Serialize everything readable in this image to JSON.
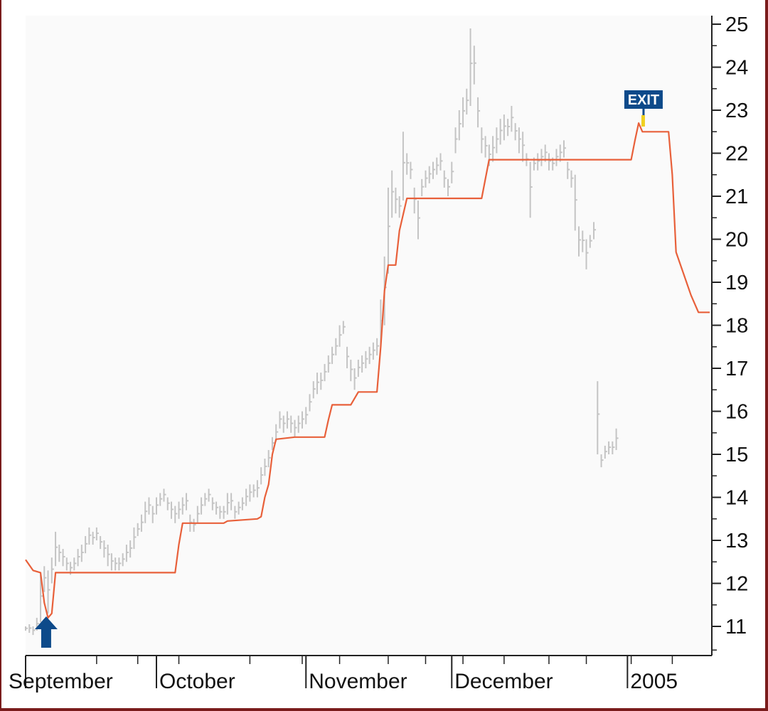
{
  "chart_data": {
    "type": "line",
    "ylim": [
      10.5,
      25.3
    ],
    "y_ticks": [
      "11",
      "12",
      "13",
      "14",
      "15",
      "16",
      "17",
      "18",
      "19",
      "20",
      "21",
      "22",
      "23",
      "24",
      "25"
    ],
    "x_labels": [
      "September",
      "October",
      "November",
      "December",
      "2005"
    ],
    "grid": false,
    "annotations": {
      "exit_label": "EXIT",
      "entry_marker": "up-arrow"
    },
    "colors": {
      "stop_line": "#e8603a",
      "price_bars": "#c4c4c4",
      "marker": "#0d4a8a",
      "plot_bg": "#fafafa"
    },
    "stop_line": [
      [
        0,
        12.55
      ],
      [
        2,
        12.3
      ],
      [
        4,
        12.25
      ],
      [
        5,
        11.55
      ],
      [
        6,
        11.2
      ],
      [
        7,
        11.3
      ],
      [
        8,
        12.25
      ],
      [
        40,
        12.25
      ],
      [
        41,
        12.9
      ],
      [
        42,
        13.4
      ],
      [
        53,
        13.4
      ],
      [
        54,
        13.45
      ],
      [
        62,
        13.5
      ],
      [
        63,
        13.55
      ],
      [
        64,
        14.0
      ],
      [
        65,
        14.3
      ],
      [
        66,
        15.0
      ],
      [
        67,
        15.35
      ],
      [
        72,
        15.4
      ],
      [
        80,
        15.4
      ],
      [
        81,
        15.8
      ],
      [
        82,
        16.15
      ],
      [
        87,
        16.15
      ],
      [
        89,
        16.45
      ],
      [
        94,
        16.45
      ],
      [
        95,
        17.5
      ],
      [
        96,
        18.8
      ],
      [
        97,
        19.4
      ],
      [
        99,
        19.4
      ],
      [
        100,
        20.2
      ],
      [
        102,
        20.95
      ],
      [
        122,
        20.95
      ],
      [
        124,
        21.85
      ],
      [
        162,
        21.85
      ],
      [
        163,
        22.3
      ],
      [
        164,
        22.7
      ],
      [
        165,
        22.5
      ],
      [
        172,
        22.5
      ],
      [
        173,
        21.5
      ],
      [
        174,
        19.7
      ],
      [
        176,
        19.2
      ],
      [
        178,
        18.7
      ],
      [
        180,
        18.3
      ],
      [
        183,
        18.3
      ]
    ],
    "price_bars": [
      [
        0,
        10.9,
        11.0
      ],
      [
        1,
        10.85,
        11.05
      ],
      [
        2,
        10.8,
        11.0
      ],
      [
        3,
        10.9,
        11.2
      ],
      [
        4,
        11.1,
        12.2
      ],
      [
        5,
        11.8,
        12.4
      ],
      [
        6,
        11.3,
        12.3
      ],
      [
        7,
        12.0,
        12.6
      ],
      [
        8,
        12.4,
        13.2
      ],
      [
        9,
        12.5,
        12.9
      ],
      [
        10,
        12.4,
        12.8
      ],
      [
        11,
        12.3,
        12.6
      ],
      [
        12,
        12.2,
        12.5
      ],
      [
        13,
        12.3,
        12.6
      ],
      [
        14,
        12.4,
        12.8
      ],
      [
        15,
        12.5,
        12.9
      ],
      [
        16,
        12.7,
        13.1
      ],
      [
        17,
        12.9,
        13.3
      ],
      [
        18,
        12.9,
        13.2
      ],
      [
        19,
        13.0,
        13.3
      ],
      [
        20,
        12.8,
        13.1
      ],
      [
        21,
        12.6,
        13.0
      ],
      [
        22,
        12.4,
        12.9
      ],
      [
        23,
        12.3,
        12.7
      ],
      [
        24,
        12.3,
        12.6
      ],
      [
        25,
        12.3,
        12.6
      ],
      [
        26,
        12.4,
        12.7
      ],
      [
        27,
        12.5,
        12.9
      ],
      [
        28,
        12.6,
        13.0
      ],
      [
        29,
        12.8,
        13.3
      ],
      [
        30,
        13.1,
        13.4
      ],
      [
        31,
        13.2,
        13.6
      ],
      [
        32,
        13.4,
        13.9
      ],
      [
        33,
        13.6,
        14.0
      ],
      [
        34,
        13.4,
        13.8
      ],
      [
        35,
        13.6,
        14.0
      ],
      [
        36,
        13.8,
        14.1
      ],
      [
        37,
        13.9,
        14.2
      ],
      [
        38,
        13.7,
        14.0
      ],
      [
        39,
        13.5,
        13.9
      ],
      [
        40,
        13.4,
        13.8
      ],
      [
        41,
        13.5,
        13.9
      ],
      [
        42,
        13.6,
        14.0
      ],
      [
        43,
        13.7,
        14.1
      ],
      [
        44,
        13.2,
        13.6
      ],
      [
        45,
        13.2,
        13.5
      ],
      [
        46,
        13.4,
        13.8
      ],
      [
        47,
        13.6,
        14.0
      ],
      [
        48,
        13.8,
        14.1
      ],
      [
        49,
        13.9,
        14.2
      ],
      [
        50,
        13.7,
        14.0
      ],
      [
        51,
        13.6,
        13.9
      ],
      [
        52,
        13.5,
        13.8
      ],
      [
        53,
        13.5,
        13.8
      ],
      [
        54,
        13.6,
        14.1
      ],
      [
        55,
        13.7,
        14.1
      ],
      [
        56,
        13.5,
        13.8
      ],
      [
        57,
        13.6,
        13.9
      ],
      [
        58,
        13.7,
        14.0
      ],
      [
        59,
        13.8,
        14.2
      ],
      [
        60,
        13.9,
        14.3
      ],
      [
        61,
        14.0,
        14.3
      ],
      [
        62,
        14.0,
        14.4
      ],
      [
        63,
        14.3,
        14.7
      ],
      [
        64,
        14.5,
        14.9
      ],
      [
        65,
        14.7,
        15.1
      ],
      [
        66,
        15.1,
        15.4
      ],
      [
        67,
        15.3,
        15.7
      ],
      [
        68,
        15.6,
        16.0
      ],
      [
        69,
        15.5,
        15.9
      ],
      [
        70,
        15.6,
        16.0
      ],
      [
        71,
        15.5,
        15.9
      ],
      [
        72,
        15.4,
        15.8
      ],
      [
        73,
        15.5,
        15.9
      ],
      [
        74,
        15.6,
        16.0
      ],
      [
        75,
        15.7,
        16.1
      ],
      [
        76,
        16.0,
        16.4
      ],
      [
        77,
        16.3,
        16.7
      ],
      [
        78,
        16.4,
        16.9
      ],
      [
        79,
        16.5,
        16.9
      ],
      [
        80,
        16.7,
        17.1
      ],
      [
        81,
        16.9,
        17.3
      ],
      [
        82,
        17.1,
        17.5
      ],
      [
        83,
        17.3,
        17.7
      ],
      [
        84,
        17.5,
        18.0
      ],
      [
        85,
        17.8,
        18.1
      ],
      [
        86,
        17.0,
        17.5
      ],
      [
        87,
        16.7,
        17.2
      ],
      [
        88,
        16.5,
        17.0
      ],
      [
        89,
        16.8,
        17.2
      ],
      [
        90,
        16.9,
        17.3
      ],
      [
        91,
        17.0,
        17.4
      ],
      [
        92,
        17.1,
        17.5
      ],
      [
        93,
        17.2,
        17.6
      ],
      [
        94,
        17.3,
        17.7
      ],
      [
        95,
        17.5,
        18.6
      ],
      [
        96,
        18.0,
        19.6
      ],
      [
        97,
        19.2,
        21.2
      ],
      [
        98,
        20.5,
        21.6
      ],
      [
        99,
        20.6,
        21.2
      ],
      [
        100,
        20.5,
        21.0
      ],
      [
        101,
        20.9,
        22.5
      ],
      [
        102,
        21.5,
        22.0
      ],
      [
        103,
        21.4,
        21.8
      ],
      [
        104,
        20.6,
        21.2
      ],
      [
        105,
        20.0,
        20.9
      ],
      [
        106,
        21.0,
        21.4
      ],
      [
        107,
        21.2,
        21.6
      ],
      [
        108,
        21.3,
        21.7
      ],
      [
        109,
        21.4,
        21.8
      ],
      [
        110,
        21.5,
        21.9
      ],
      [
        111,
        21.6,
        22.0
      ],
      [
        112,
        21.2,
        21.6
      ],
      [
        113,
        21.0,
        21.4
      ],
      [
        114,
        21.3,
        21.8
      ],
      [
        115,
        22.0,
        22.6
      ],
      [
        116,
        22.3,
        23.0
      ],
      [
        117,
        22.6,
        23.3
      ],
      [
        118,
        22.9,
        23.5
      ],
      [
        119,
        23.1,
        24.9
      ],
      [
        120,
        23.6,
        24.5
      ],
      [
        121,
        22.6,
        23.3
      ],
      [
        122,
        22.0,
        22.6
      ],
      [
        123,
        21.9,
        22.4
      ],
      [
        124,
        21.7,
        22.2
      ],
      [
        125,
        21.8,
        22.4
      ],
      [
        126,
        22.0,
        22.6
      ],
      [
        127,
        22.2,
        22.8
      ],
      [
        128,
        22.3,
        22.9
      ],
      [
        129,
        22.4,
        22.8
      ],
      [
        130,
        22.5,
        23.1
      ],
      [
        131,
        22.3,
        22.7
      ],
      [
        132,
        22.0,
        22.6
      ],
      [
        133,
        21.8,
        22.5
      ],
      [
        134,
        21.7,
        22.0
      ],
      [
        135,
        20.5,
        21.8
      ],
      [
        136,
        21.6,
        21.9
      ],
      [
        137,
        21.6,
        22.0
      ],
      [
        138,
        21.7,
        22.1
      ],
      [
        139,
        21.8,
        22.2
      ],
      [
        140,
        21.6,
        22.0
      ],
      [
        141,
        21.6,
        21.9
      ],
      [
        142,
        21.7,
        22.1
      ],
      [
        143,
        21.8,
        22.2
      ],
      [
        144,
        21.9,
        22.3
      ],
      [
        145,
        21.4,
        21.8
      ],
      [
        146,
        21.2,
        21.6
      ],
      [
        147,
        20.2,
        21.5
      ],
      [
        148,
        19.6,
        20.3
      ],
      [
        149,
        19.7,
        20.2
      ],
      [
        150,
        19.3,
        20.0
      ],
      [
        151,
        19.8,
        20.1
      ],
      [
        152,
        20.0,
        20.4
      ],
      [
        153,
        15.0,
        16.7
      ],
      [
        154,
        14.7,
        15.0
      ],
      [
        155,
        14.9,
        15.2
      ],
      [
        156,
        15.0,
        15.3
      ],
      [
        157,
        15.0,
        15.3
      ],
      [
        158,
        15.1,
        15.6
      ]
    ]
  }
}
